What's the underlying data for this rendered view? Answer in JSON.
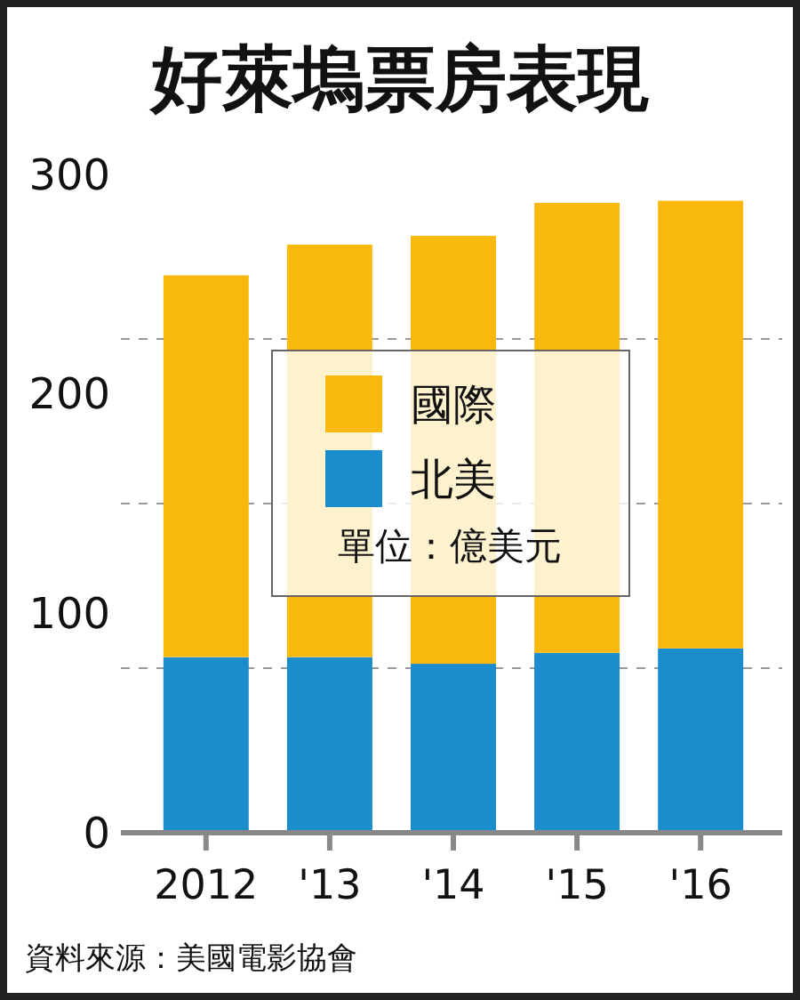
{
  "chart_data": {
    "type": "bar",
    "title": "好萊塢票房表現",
    "categories": [
      "2012",
      "'13",
      "'14",
      "'15",
      "'16"
    ],
    "stacked": true,
    "series": [
      {
        "name": "北美",
        "color": "#1b8ccc",
        "values": [
          80,
          80,
          77,
          82,
          84
        ]
      },
      {
        "name": "國際",
        "color": "#f9b80c",
        "values": [
          174,
          188,
          195,
          205,
          204
        ]
      }
    ],
    "ylim": [
      0,
      300
    ],
    "yticks": [
      0,
      {
        "value": 75,
        "label": null
      },
      100,
      {
        "value": 150,
        "label": null
      },
      200,
      {
        "value": 225,
        "label": null
      },
      300
    ],
    "grid": "y",
    "legend": "center",
    "annotations": [
      "單位：億美元",
      "資料來源：美國電影協會"
    ]
  }
}
